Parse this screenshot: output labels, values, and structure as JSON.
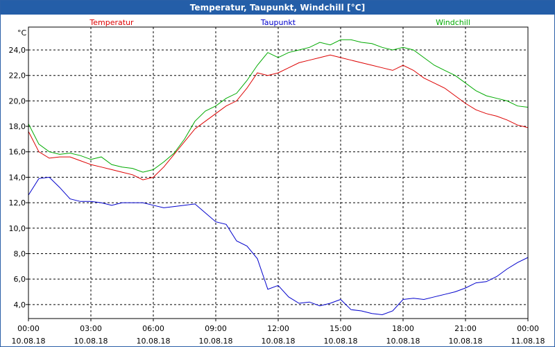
{
  "window": {
    "title": "Temperatur, Taupunkt, Windchill [°C]"
  },
  "chart_data": {
    "type": "line",
    "title": "Temperatur, Taupunkt, Windchill [°C]",
    "ylabel": "°C",
    "ylim": [
      2.9,
      25.8
    ],
    "xlim_hours": [
      0,
      24
    ],
    "y_ticks": [
      "4,0",
      "6,0",
      "8,0",
      "10,0",
      "12,0",
      "14,0",
      "16,0",
      "18,0",
      "20,0",
      "22,0",
      "24,0"
    ],
    "x_ticks": [
      {
        "time": "00:00",
        "date": "10.08.18"
      },
      {
        "time": "03:00",
        "date": "10.08.18"
      },
      {
        "time": "06:00",
        "date": "10.08.18"
      },
      {
        "time": "09:00",
        "date": "10.08.18"
      },
      {
        "time": "12:00",
        "date": "10.08.18"
      },
      {
        "time": "15:00",
        "date": "10.08.18"
      },
      {
        "time": "18:00",
        "date": "10.08.18"
      },
      {
        "time": "21:00",
        "date": "10.08.18"
      },
      {
        "time": "00:00",
        "date": "11.08.18"
      }
    ],
    "grid": true,
    "legend_position": "top",
    "x": [
      0,
      0.5,
      1,
      1.5,
      2,
      2.5,
      3,
      3.5,
      4,
      4.5,
      5,
      5.5,
      6,
      6.5,
      7,
      7.5,
      8,
      8.5,
      9,
      9.5,
      10,
      10.5,
      11,
      11.5,
      12,
      12.5,
      13,
      13.5,
      14,
      14.5,
      15,
      15.5,
      16,
      16.5,
      17,
      17.5,
      18,
      18.5,
      19,
      19.5,
      20,
      20.5,
      21,
      21.5,
      22,
      22.5,
      23,
      23.5,
      24
    ],
    "series": [
      {
        "name": "Temperatur",
        "color": "#dd0000",
        "values": [
          17.6,
          16.0,
          15.5,
          15.6,
          15.6,
          15.3,
          15.0,
          14.8,
          14.6,
          14.4,
          14.2,
          13.8,
          14.0,
          14.8,
          15.8,
          16.8,
          17.8,
          18.4,
          19.0,
          19.6,
          20.0,
          21.0,
          22.2,
          22.0,
          22.2,
          22.6,
          23.0,
          23.2,
          23.4,
          23.6,
          23.4,
          23.2,
          23.0,
          22.8,
          22.6,
          22.4,
          22.8,
          22.4,
          21.8,
          21.4,
          21.0,
          20.4,
          19.8,
          19.3,
          19.0,
          18.8,
          18.5,
          18.1,
          17.9
        ]
      },
      {
        "name": "Taupunkt",
        "color": "#0000cc",
        "values": [
          12.6,
          13.9,
          14.0,
          13.2,
          12.3,
          12.1,
          12.1,
          12.0,
          11.8,
          12.0,
          12.0,
          12.0,
          11.8,
          11.6,
          11.7,
          11.8,
          11.9,
          11.2,
          10.5,
          10.3,
          9.0,
          8.6,
          7.6,
          5.2,
          5.5,
          4.6,
          4.1,
          4.2,
          3.9,
          4.1,
          4.4,
          3.6,
          3.5,
          3.3,
          3.2,
          3.5,
          4.4,
          4.5,
          4.4,
          4.6,
          4.8,
          5.0,
          5.3,
          5.7,
          5.8,
          6.2,
          6.8,
          7.3,
          7.7
        ]
      },
      {
        "name": "Windchill",
        "color": "#00aa00",
        "values": [
          18.2,
          16.6,
          16.0,
          15.8,
          15.9,
          15.7,
          15.4,
          15.6,
          15.0,
          14.8,
          14.7,
          14.4,
          14.6,
          15.2,
          15.9,
          17.0,
          18.4,
          19.2,
          19.6,
          20.2,
          20.6,
          21.6,
          22.8,
          23.8,
          23.4,
          23.8,
          24.0,
          24.2,
          24.6,
          24.4,
          24.8,
          24.8,
          24.6,
          24.5,
          24.2,
          24.0,
          24.2,
          24.0,
          23.4,
          22.8,
          22.4,
          22.0,
          21.4,
          20.8,
          20.4,
          20.2,
          20.0,
          19.6,
          19.5
        ]
      }
    ]
  }
}
